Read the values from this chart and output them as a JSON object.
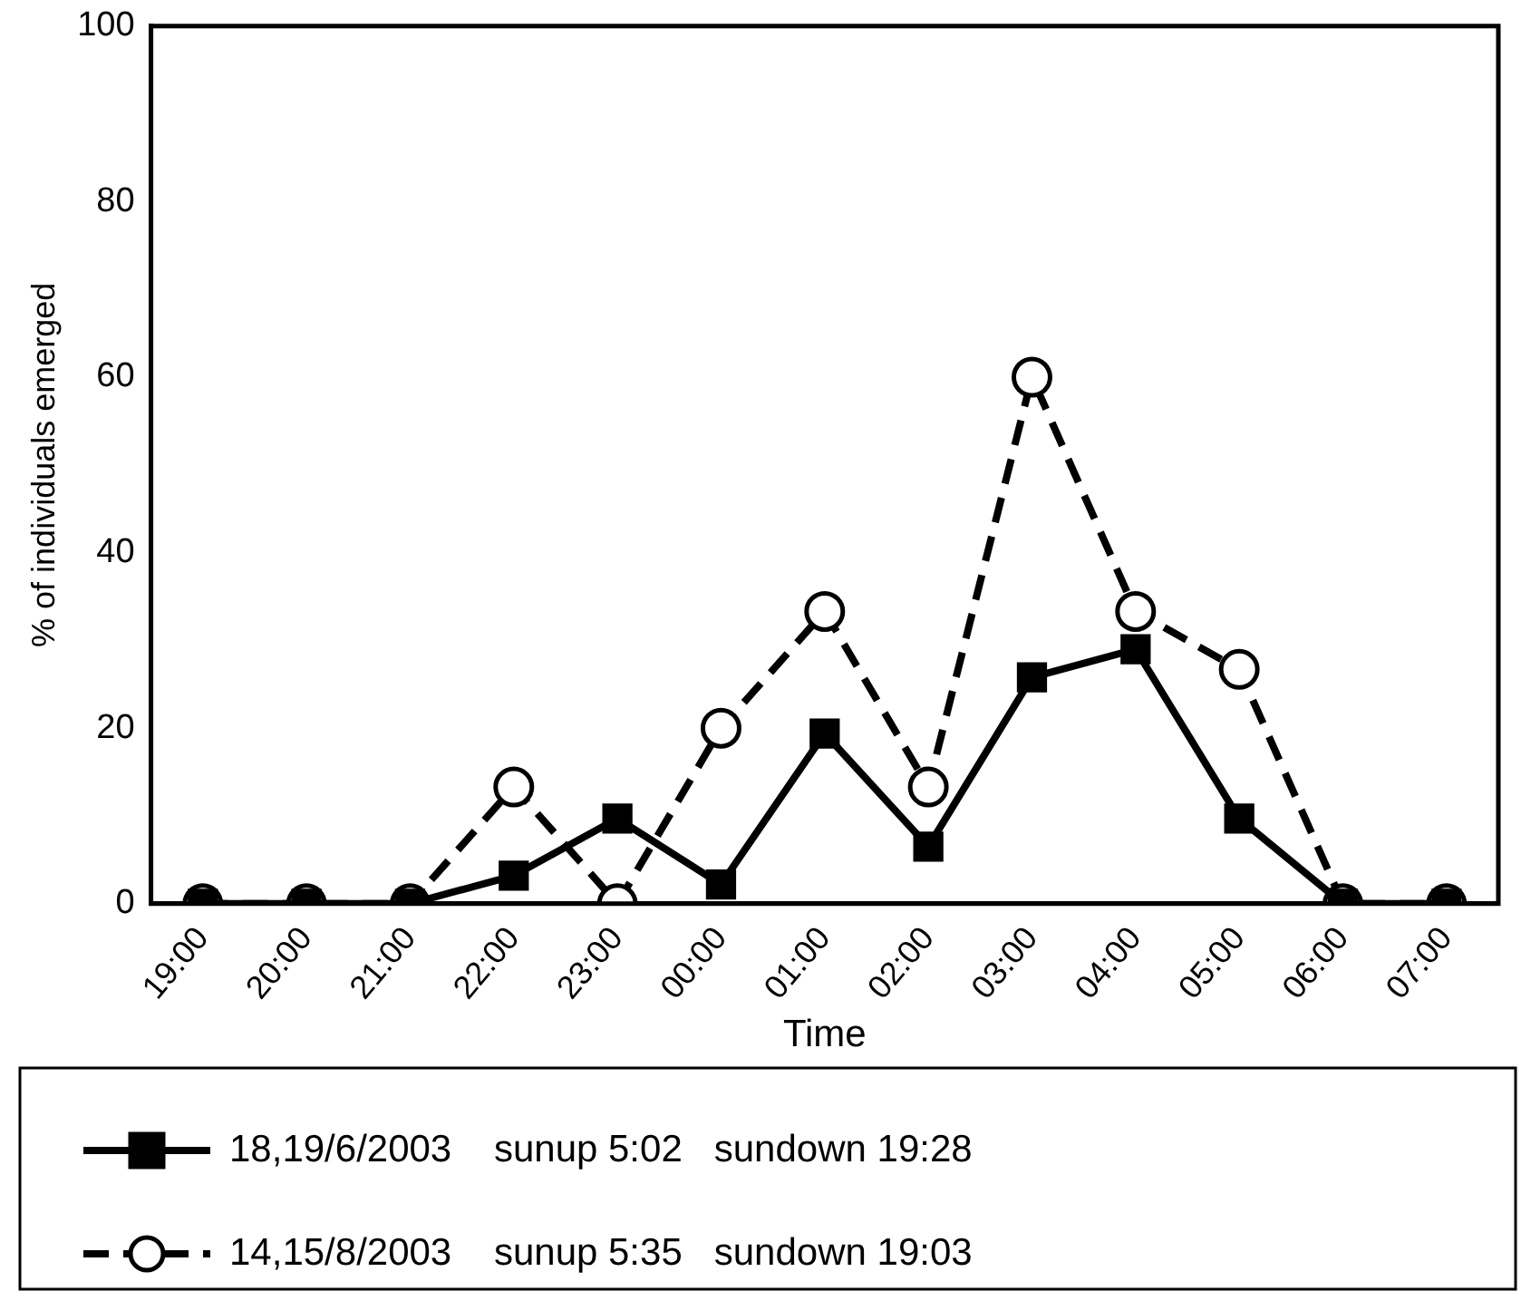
{
  "chart_data": {
    "type": "line",
    "xlabel": "Time",
    "ylabel": "% of individuals emerged",
    "categories": [
      "19:00",
      "20:00",
      "21:00",
      "22:00",
      "23:00",
      "00:00",
      "01:00",
      "02:00",
      "03:00",
      "04:00",
      "05:00",
      "06:00",
      "07:00"
    ],
    "series": [
      {
        "name": "18,19/6/2003    sunup 5:02   sundown 19:28",
        "color": "#000000",
        "marker": "square",
        "line_style": "solid",
        "values": [
          0,
          0,
          0,
          3.2,
          9.7,
          2.2,
          19.4,
          6.5,
          25.8,
          29,
          9.7,
          0,
          0
        ]
      },
      {
        "name": "14,15/8/2003    sunup 5:35   sundown 19:03",
        "color": "#000000",
        "marker": "circle",
        "line_style": "dashed",
        "values": [
          0,
          0,
          0,
          13.3,
          0,
          20,
          33.3,
          13.3,
          60,
          33.3,
          26.7,
          0,
          0
        ]
      }
    ],
    "ylim": [
      0,
      100
    ],
    "yticks": [
      0,
      20,
      40,
      60,
      80,
      100
    ],
    "grid": false,
    "legend": "bottom"
  }
}
